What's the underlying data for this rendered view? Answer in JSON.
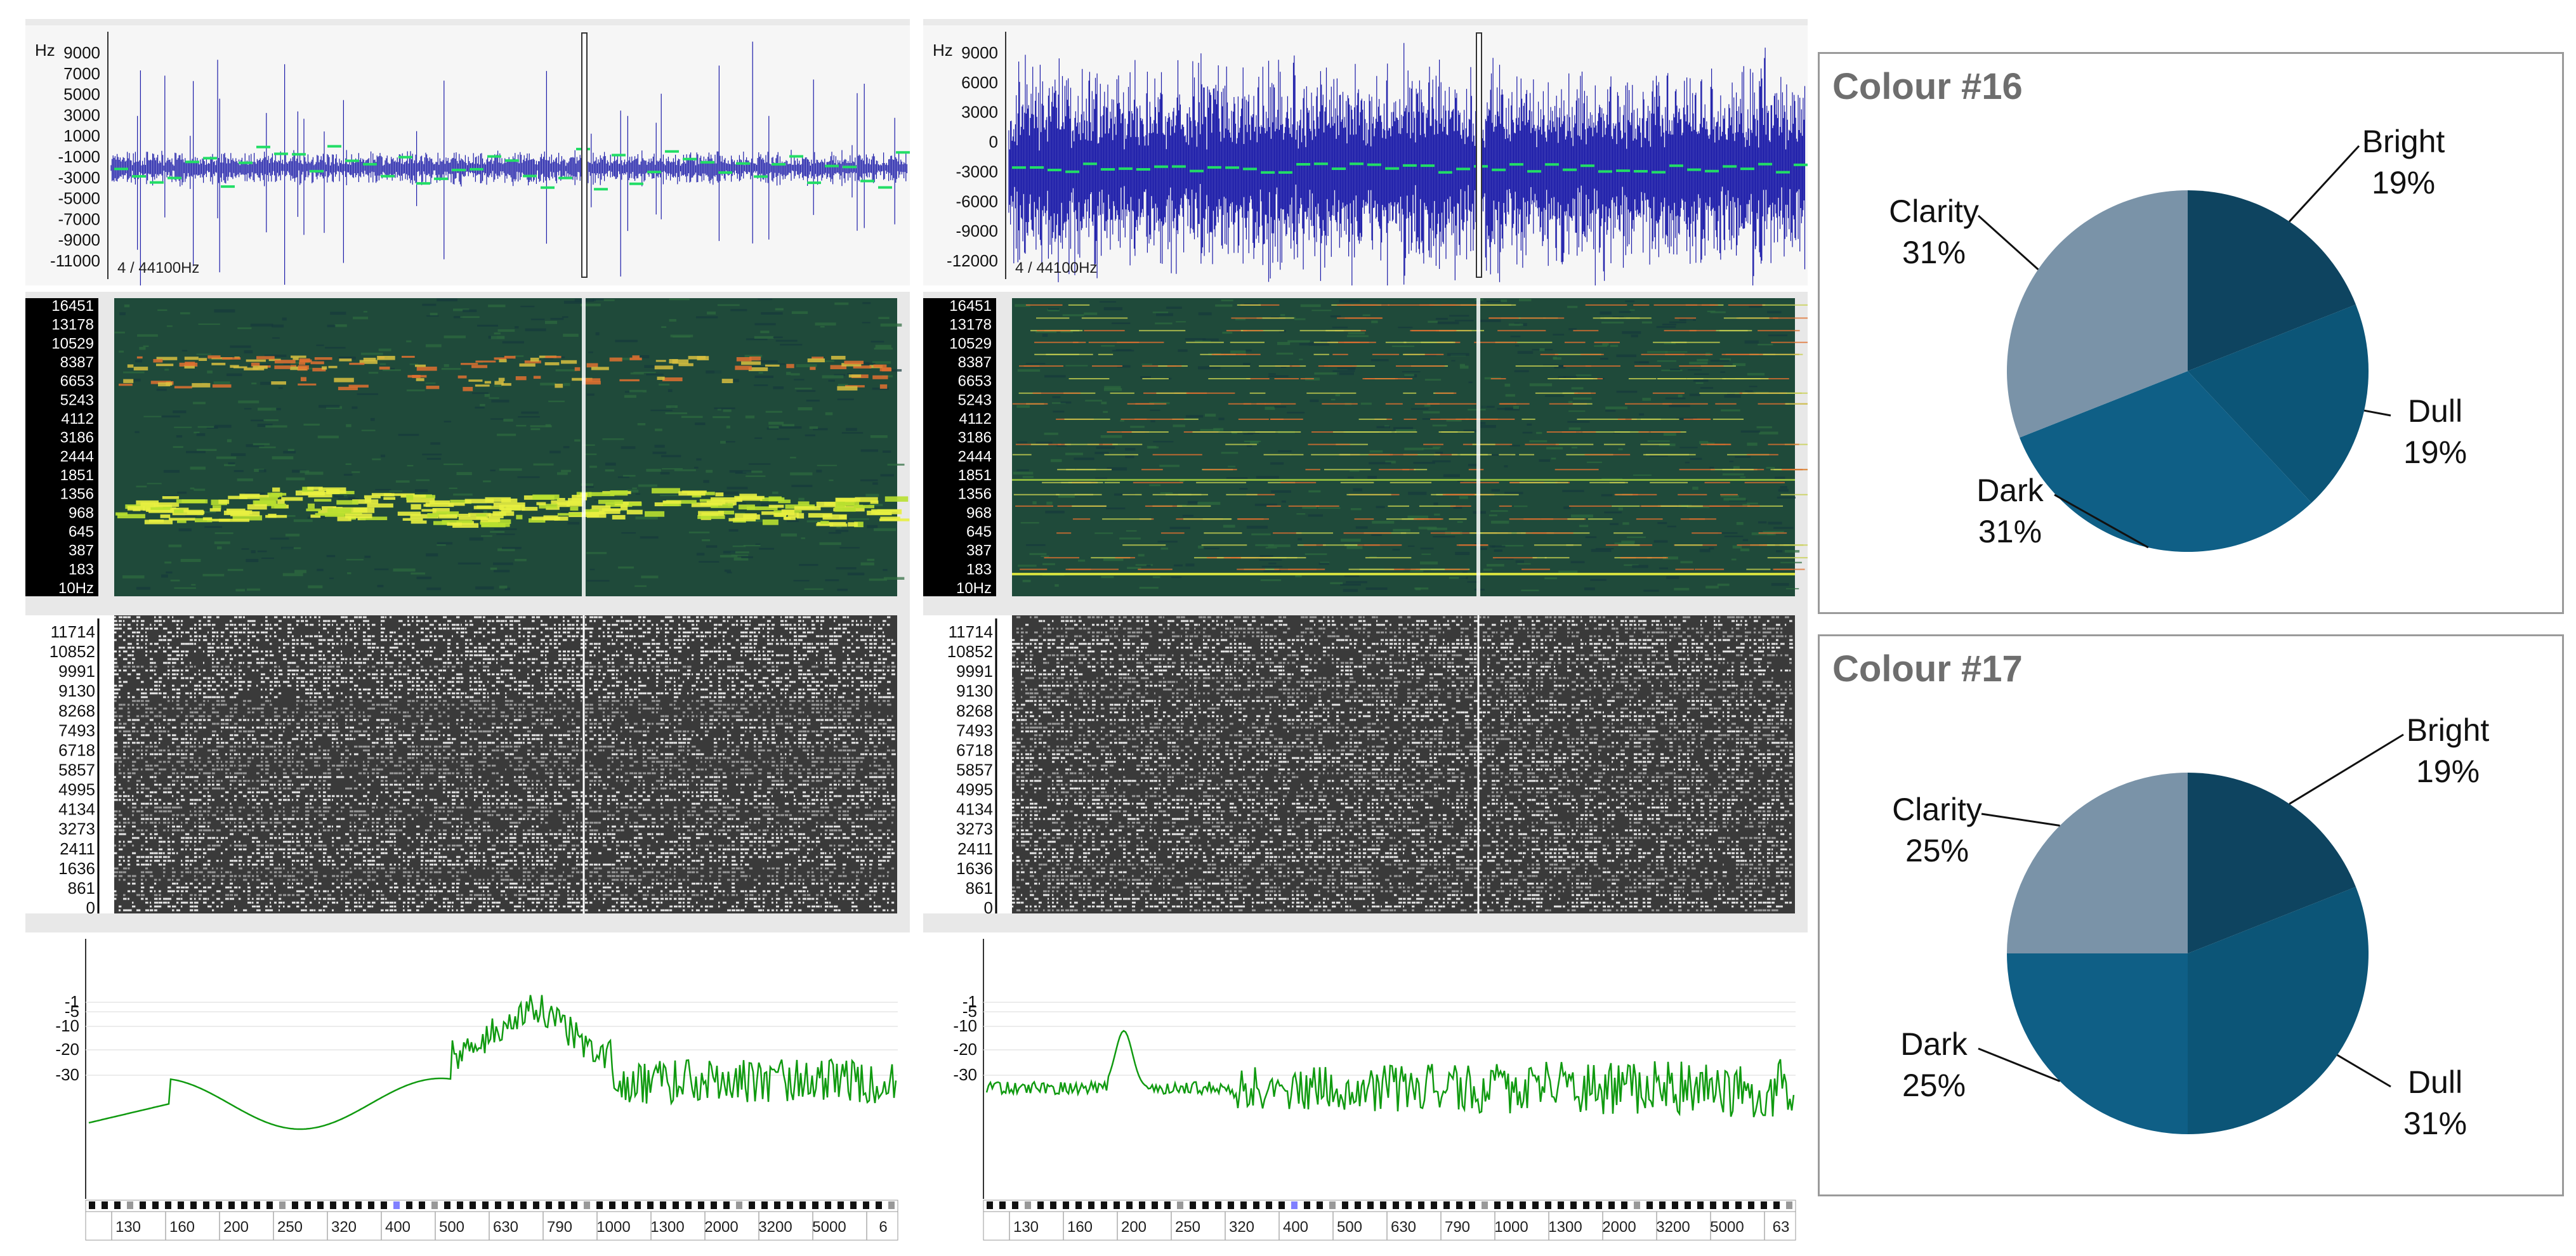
{
  "colors": {
    "wave": "#1a1aa8",
    "wave_green": "#22dd66",
    "spec_bg": "#1f4a3a",
    "spec_yellow": "#e8f040",
    "spec_orange": "#e07030",
    "fft_line": "#109a10",
    "pie_bright": "#0e4460",
    "pie_dull": "#0c5577",
    "pie_dark": "#0f5f86",
    "pie_clarity": "#7a93a8"
  },
  "left": {
    "waveform": {
      "unit": "Hz",
      "ticks": [
        "9000",
        "7000",
        "5000",
        "3000",
        "1000",
        "-1000",
        "-3000",
        "-5000",
        "-7000",
        "-9000",
        "-11000"
      ],
      "info": "4 / 44100Hz"
    },
    "spectrogram": {
      "ticks": [
        "16451",
        "13178",
        "10529",
        "8387",
        "6653",
        "5243",
        "4112",
        "3186",
        "2444",
        "1851",
        "1356",
        "968",
        "645",
        "387",
        "183",
        "10Hz"
      ]
    },
    "phase": {
      "ticks": [
        "11714",
        "10852",
        "9991",
        "9130",
        "8268",
        "7493",
        "6718",
        "5857",
        "4995",
        "4134",
        "3273",
        "2411",
        "1636",
        "861",
        "0"
      ]
    },
    "spectrum": {
      "yticks": [
        "-1",
        "-5",
        "-10",
        "-20",
        "-30"
      ],
      "xticks": [
        "130",
        "160",
        "200",
        "250",
        "320",
        "400",
        "500",
        "630",
        "790",
        "1000",
        "1300",
        "2000",
        "3200",
        "5000",
        "6"
      ]
    }
  },
  "right": {
    "waveform": {
      "unit": "Hz",
      "ticks": [
        "9000",
        "6000",
        "3000",
        "0",
        "-3000",
        "-6000",
        "-9000",
        "-12000"
      ],
      "info": "4 / 44100Hz"
    },
    "spectrogram": {
      "ticks": [
        "16451",
        "13178",
        "10529",
        "8387",
        "6653",
        "5243",
        "4112",
        "3186",
        "2444",
        "1851",
        "1356",
        "968",
        "645",
        "387",
        "183",
        "10Hz"
      ]
    },
    "phase": {
      "ticks": [
        "11714",
        "10852",
        "9991",
        "9130",
        "8268",
        "7493",
        "6718",
        "5857",
        "4995",
        "4134",
        "3273",
        "2411",
        "1636",
        "861",
        "0"
      ]
    },
    "spectrum": {
      "yticks": [
        "-1",
        "-5",
        "-10",
        "-20",
        "-30"
      ],
      "xticks": [
        "130",
        "160",
        "200",
        "250",
        "320",
        "400",
        "500",
        "630",
        "790",
        "1000",
        "1300",
        "2000",
        "3200",
        "5000",
        "63"
      ]
    }
  },
  "chart_data": [
    {
      "type": "pie",
      "title": "Colour #16",
      "categories": [
        "Bright",
        "Dull",
        "Dark",
        "Clarity"
      ],
      "values": [
        19,
        19,
        31,
        31
      ],
      "labels": [
        "19%",
        "19%",
        "31%",
        "31%"
      ]
    },
    {
      "type": "pie",
      "title": "Colour #17",
      "categories": [
        "Bright",
        "Dull",
        "Dark",
        "Clarity"
      ],
      "values": [
        19,
        31,
        25,
        25
      ],
      "labels": [
        "19%",
        "31%",
        "25%",
        "25%"
      ]
    }
  ]
}
